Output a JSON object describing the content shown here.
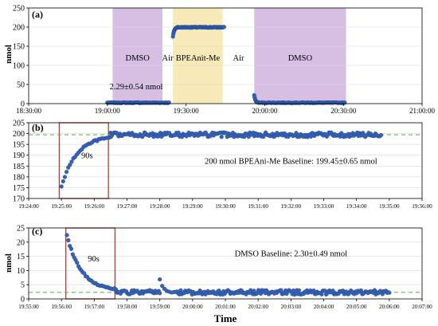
{
  "xlabel": "Time",
  "colors": {
    "points": "#3563b8",
    "point_edge": "#24458c",
    "baseline": "#5db84a",
    "dmso_fill": "#d7bfe3",
    "bpe_fill": "#f8e9b8",
    "highlight": "#c0392b",
    "grid": "#d9d9d9"
  },
  "chart_data": [
    {
      "type": "scatter",
      "panel_label": "(a)",
      "ylabel": "nmol",
      "ylim": [
        0,
        250
      ],
      "yticks": [
        0,
        50,
        100,
        150,
        200,
        250
      ],
      "xlim": [
        "18:30:00",
        "21:00:00"
      ],
      "xticks": [
        "18:30:00",
        "19:00:00",
        "19:30:00",
        "20:00:00",
        "20:30:00",
        "21:00:00"
      ],
      "grid": "horizontal",
      "regions": [
        {
          "label": "DMSO",
          "start": "19:02:00",
          "end": "19:21:00",
          "fill": "dmso"
        },
        {
          "label": "BPEAnit-Me",
          "start": "19:25:00",
          "end": "19:44:00",
          "fill": "bpe"
        },
        {
          "label": "DMSO",
          "start": "19:56:00",
          "end": "20:31:00",
          "fill": "dmso"
        }
      ],
      "gap_labels": [
        {
          "text": "Air",
          "at": "19:23:00",
          "y": 155
        },
        {
          "text": "Air",
          "at": "19:50:00",
          "y": 158
        }
      ],
      "annotations": [
        {
          "text": "2.29±0.54 nmol",
          "at": "19:11:00",
          "y": 37
        }
      ],
      "series": [
        {
          "segments": [
            {
              "type": "flat",
              "start": "19:00:00",
              "end": "19:23:30",
              "value": 2.29,
              "noise": 0.54,
              "n": 70
            },
            {
              "type": "rise",
              "start": "19:25:00",
              "end": "19:26:30",
              "from": 175,
              "to": 199.45,
              "n": 12
            },
            {
              "type": "flat",
              "start": "19:26:30",
              "end": "19:44:30",
              "value": 199.45,
              "noise": 0.65,
              "n": 80
            },
            {
              "type": "decay",
              "start": "19:56:00",
              "end": "19:57:30",
              "from": 22,
              "to": 2.3,
              "n": 10
            },
            {
              "type": "flat",
              "start": "19:57:30",
              "end": "20:30:30",
              "value": 2.3,
              "noise": 0.49,
              "n": 95
            }
          ]
        }
      ]
    },
    {
      "type": "scatter",
      "panel_label": "(b)",
      "ylabel": "",
      "ylim": [
        170,
        205
      ],
      "yticks": [
        170,
        175,
        180,
        185,
        190,
        195,
        200,
        205
      ],
      "xlim": [
        "19:24:00",
        "19:36:00"
      ],
      "xticks": [
        "19:24:00",
        "19:25:00",
        "19:26:00",
        "19:27:00",
        "19:28:00",
        "19:29:00",
        "19:30:00",
        "19:31:00",
        "19:32:00",
        "19:33:00",
        "19:34:00",
        "19:35:00",
        "19:36:00"
      ],
      "grid": "horizontal",
      "baseline": 199.45,
      "highlight": {
        "start": "19:24:56",
        "end": "19:26:26",
        "label": "90s"
      },
      "annotations": [
        {
          "text": "200 nmol BPEAni-Me Baseline: 199.45±0.65 nmol",
          "at": "19:32:00",
          "y": 186
        }
      ],
      "series": [
        {
          "segments": [
            {
              "type": "rise",
              "start": "19:25:00",
              "end": "19:26:30",
              "from": 175.5,
              "to": 199.2,
              "n": 30
            },
            {
              "type": "flat",
              "start": "19:26:30",
              "end": "19:34:45",
              "value": 199.45,
              "noise": 0.65,
              "n": 240
            }
          ]
        }
      ]
    },
    {
      "type": "scatter",
      "panel_label": "(c)",
      "ylabel": "nmol",
      "ylim": [
        0,
        25
      ],
      "yticks": [
        0,
        5,
        10,
        15,
        20,
        25
      ],
      "xlim": [
        "19:55:00",
        "20:07:00"
      ],
      "xticks": [
        "19:55:00",
        "19:56:00",
        "19:57:00",
        "19:58:00",
        "19:59:00",
        "20:00:00",
        "20:01:00",
        "20:02:00",
        "20:03:00",
        "20:04:00",
        "20:05:00",
        "20:06:00",
        "20:07:00"
      ],
      "grid": "horizontal",
      "baseline": 2.3,
      "highlight": {
        "start": "19:56:08",
        "end": "19:57:38",
        "label": "90s"
      },
      "annotations": [
        {
          "text": "DMSO Baseline: 2.30±0.49 nmol",
          "at": "20:03:00",
          "y": 15
        }
      ],
      "series": [
        {
          "segments": [
            {
              "type": "decay",
              "start": "19:56:10",
              "end": "19:57:40",
              "from": 22.5,
              "to": 2.8,
              "n": 35
            },
            {
              "type": "flat",
              "start": "19:57:40",
              "end": "19:59:00",
              "value": 2.3,
              "noise": 0.49,
              "n": 40
            },
            {
              "type": "bump",
              "start": "19:59:00",
              "end": "19:59:30",
              "from": 6.8,
              "to": 2.3,
              "n": 8
            },
            {
              "type": "flat",
              "start": "19:59:30",
              "end": "20:06:00",
              "value": 2.3,
              "noise": 0.49,
              "n": 190
            }
          ]
        }
      ]
    }
  ]
}
